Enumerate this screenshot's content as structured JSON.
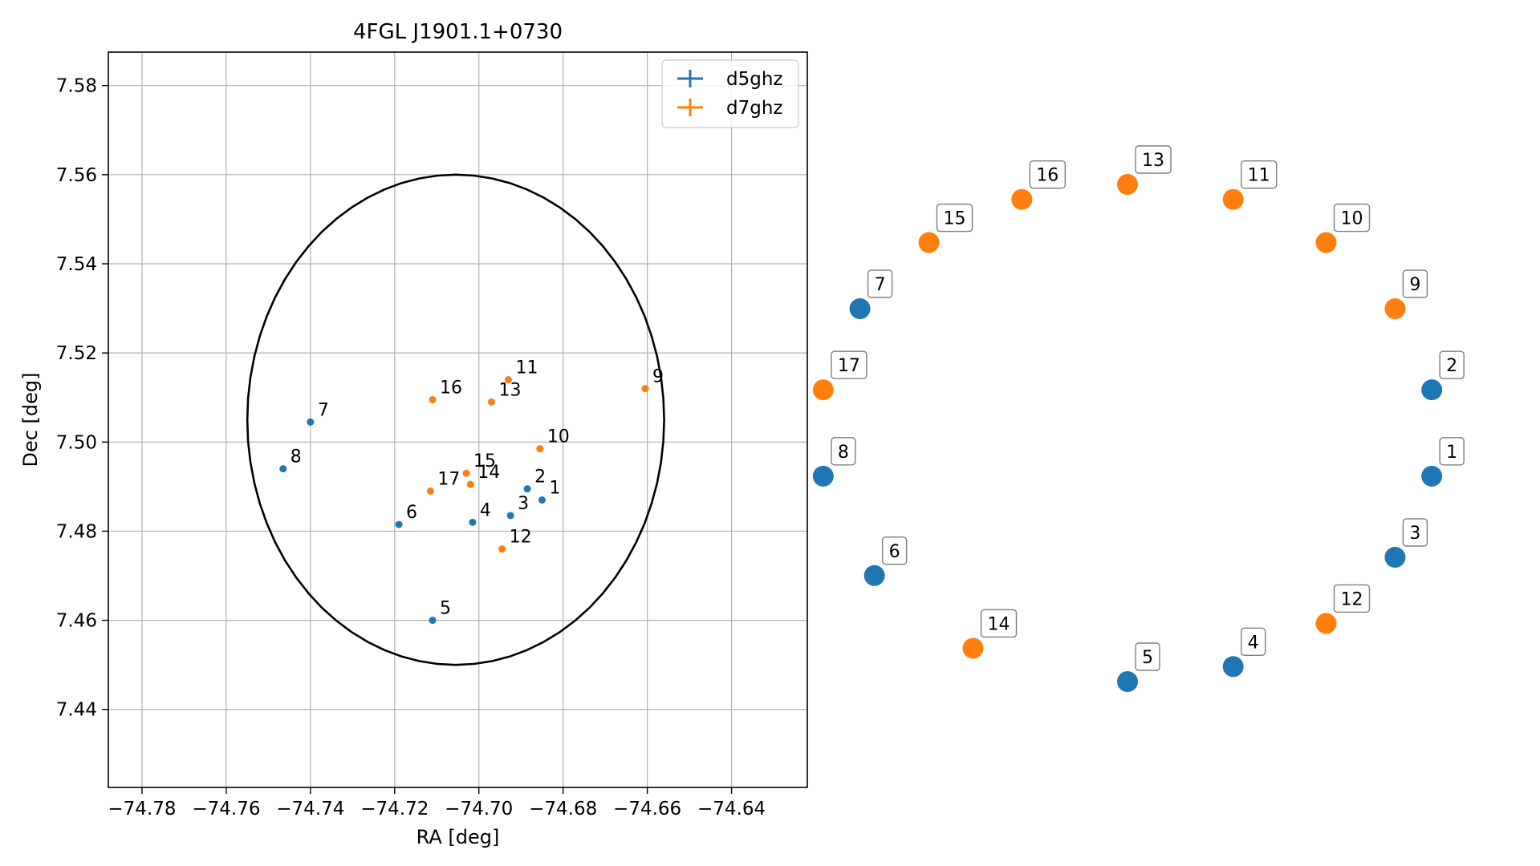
{
  "chart_data": [
    {
      "type": "scatter",
      "title": "4FGL J1901.1+0730",
      "xlabel": "RA [deg]",
      "ylabel": "Dec [deg]",
      "xlim": [
        -74.788,
        -74.622
      ],
      "ylim": [
        7.4225,
        7.5875
      ],
      "x_ticks": [
        -74.78,
        -74.76,
        -74.74,
        -74.72,
        -74.7,
        -74.68,
        -74.66,
        -74.64
      ],
      "x_tick_labels": [
        "−74.78",
        "−74.76",
        "−74.74",
        "−74.72",
        "−74.70",
        "−74.68",
        "−74.66",
        "−74.64"
      ],
      "y_ticks": [
        7.44,
        7.46,
        7.48,
        7.5,
        7.52,
        7.54,
        7.56,
        7.58
      ],
      "y_tick_labels": [
        "7.44",
        "7.46",
        "7.48",
        "7.50",
        "7.52",
        "7.54",
        "7.56",
        "7.58"
      ],
      "grid": true,
      "legend_position": "top-right",
      "ellipse": {
        "center_ra": -74.7055,
        "center_dec": 7.505,
        "semi_ra": 0.0495,
        "semi_dec": 0.055,
        "color": "#000000"
      },
      "series": [
        {
          "name": "d5ghz",
          "color": "#1f77b4",
          "points": [
            {
              "label": "1",
              "ra": -74.685,
              "dec": 7.487
            },
            {
              "label": "2",
              "ra": -74.6885,
              "dec": 7.4895
            },
            {
              "label": "3",
              "ra": -74.6925,
              "dec": 7.4835
            },
            {
              "label": "4",
              "ra": -74.7015,
              "dec": 7.482
            },
            {
              "label": "5",
              "ra": -74.711,
              "dec": 7.46
            },
            {
              "label": "6",
              "ra": -74.719,
              "dec": 7.4815
            },
            {
              "label": "7",
              "ra": -74.74,
              "dec": 7.5045
            },
            {
              "label": "8",
              "ra": -74.7465,
              "dec": 7.494
            }
          ]
        },
        {
          "name": "d7ghz",
          "color": "#ff7f0e",
          "points": [
            {
              "label": "9",
              "ra": -74.6605,
              "dec": 7.512
            },
            {
              "label": "10",
              "ra": -74.6855,
              "dec": 7.4985
            },
            {
              "label": "11",
              "ra": -74.693,
              "dec": 7.514
            },
            {
              "label": "12",
              "ra": -74.6945,
              "dec": 7.476
            },
            {
              "label": "13",
              "ra": -74.697,
              "dec": 7.509
            },
            {
              "label": "14",
              "ra": -74.702,
              "dec": 7.4905
            },
            {
              "label": "15",
              "ra": -74.703,
              "dec": 7.493
            },
            {
              "label": "16",
              "ra": -74.711,
              "dec": 7.5095
            },
            {
              "label": "17",
              "ra": -74.7115,
              "dec": 7.489
            }
          ]
        }
      ]
    },
    {
      "type": "scatter",
      "title": "",
      "series": [
        {
          "name": "d5ghz",
          "color": "#1f77b4",
          "points": [
            {
              "label": "1",
              "angle_deg": 350
            },
            {
              "label": "2",
              "angle_deg": 10
            },
            {
              "label": "3",
              "angle_deg": 330
            },
            {
              "label": "4",
              "angle_deg": 290
            },
            {
              "label": "5",
              "angle_deg": 270
            },
            {
              "label": "6",
              "angle_deg": 215
            },
            {
              "label": "7",
              "angle_deg": 150
            },
            {
              "label": "8",
              "angle_deg": 190
            }
          ]
        },
        {
          "name": "d7ghz",
          "color": "#ff7f0e",
          "points": [
            {
              "label": "9",
              "angle_deg": 30
            },
            {
              "label": "10",
              "angle_deg": 50
            },
            {
              "label": "11",
              "angle_deg": 70
            },
            {
              "label": "12",
              "angle_deg": 310
            },
            {
              "label": "13",
              "angle_deg": 90
            },
            {
              "label": "14",
              "angle_deg": 240
            },
            {
              "label": "15",
              "angle_deg": 130
            },
            {
              "label": "16",
              "angle_deg": 110
            },
            {
              "label": "17",
              "angle_deg": 170
            }
          ]
        }
      ]
    }
  ]
}
